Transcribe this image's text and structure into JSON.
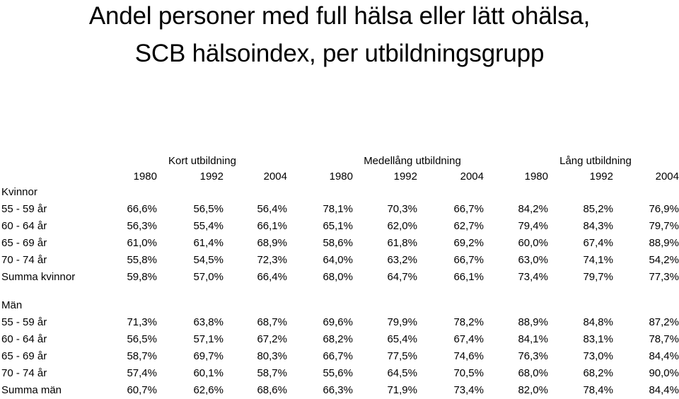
{
  "title_line1": "Andel personer med full hälsa eller lätt ohälsa,",
  "title_line2": "SCB hälsoindex, per utbildningsgrupp",
  "groups": [
    "Kort utbildning",
    "Medellång utbildning",
    "Lång utbildning"
  ],
  "years": [
    "1980",
    "1992",
    "2004",
    "1980",
    "1992",
    "2004",
    "1980",
    "1992",
    "2004"
  ],
  "sections": [
    {
      "label": "Kvinnor",
      "rows": [
        {
          "label": "55 - 59 år",
          "values": [
            "66,6%",
            "56,5%",
            "56,4%",
            "78,1%",
            "70,3%",
            "66,7%",
            "84,2%",
            "85,2%",
            "76,9%"
          ]
        },
        {
          "label": "60 - 64 år",
          "values": [
            "56,3%",
            "55,4%",
            "66,1%",
            "65,1%",
            "62,0%",
            "62,7%",
            "79,4%",
            "84,3%",
            "79,7%"
          ]
        },
        {
          "label": "65 - 69 år",
          "values": [
            "61,0%",
            "61,4%",
            "68,9%",
            "58,6%",
            "61,8%",
            "69,2%",
            "60,0%",
            "67,4%",
            "88,9%"
          ]
        },
        {
          "label": "70 - 74 år",
          "values": [
            "55,8%",
            "54,5%",
            "72,3%",
            "64,0%",
            "63,2%",
            "66,7%",
            "63,0%",
            "74,1%",
            "54,2%"
          ]
        },
        {
          "label": "Summa kvinnor",
          "values": [
            "59,8%",
            "57,0%",
            "66,4%",
            "68,0%",
            "64,7%",
            "66,1%",
            "73,4%",
            "79,7%",
            "77,3%"
          ]
        }
      ]
    },
    {
      "label": "Män",
      "rows": [
        {
          "label": "55 - 59 år",
          "values": [
            "71,3%",
            "63,8%",
            "68,7%",
            "69,6%",
            "79,9%",
            "78,2%",
            "88,9%",
            "84,8%",
            "87,2%"
          ]
        },
        {
          "label": "60 - 64 år",
          "values": [
            "56,5%",
            "57,1%",
            "67,2%",
            "68,2%",
            "65,4%",
            "67,4%",
            "84,1%",
            "83,1%",
            "78,7%"
          ]
        },
        {
          "label": "65 - 69 år",
          "values": [
            "58,7%",
            "69,7%",
            "80,3%",
            "66,7%",
            "77,5%",
            "74,6%",
            "76,3%",
            "73,0%",
            "84,4%"
          ]
        },
        {
          "label": "70 - 74 år",
          "values": [
            "57,4%",
            "60,1%",
            "58,7%",
            "55,6%",
            "64,5%",
            "70,5%",
            "68,0%",
            "68,2%",
            "90,0%"
          ]
        },
        {
          "label": "Summa män",
          "values": [
            "60,7%",
            "62,6%",
            "68,6%",
            "66,3%",
            "71,9%",
            "73,4%",
            "82,0%",
            "78,4%",
            "84,4%"
          ]
        }
      ]
    }
  ]
}
